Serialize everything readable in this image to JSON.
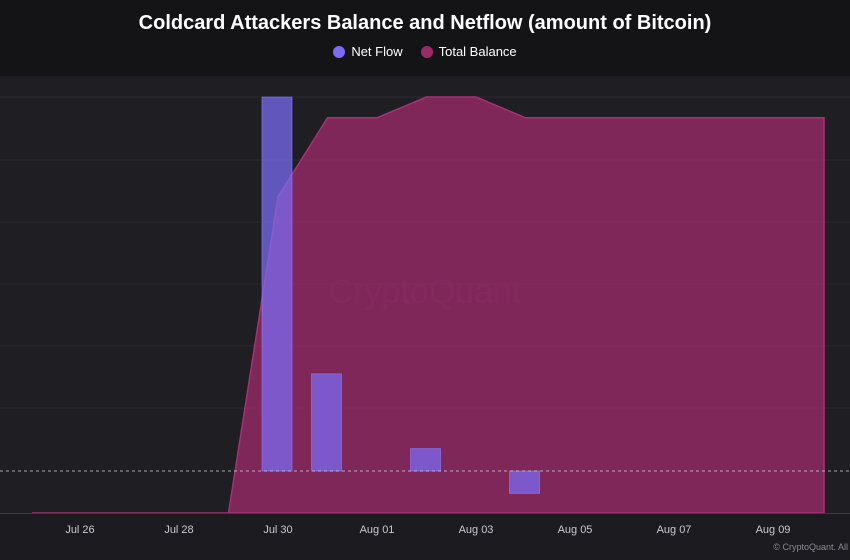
{
  "chart_data": {
    "type": "bar",
    "title": "Coldcard Attackers Balance and Netflow (amount of Bitcoin)",
    "x_tick_labels": [
      "Jul 26",
      "Jul 28",
      "Jul 30",
      "Aug 01",
      "Aug 03",
      "Aug 05",
      "Aug 07",
      "Aug 09"
    ],
    "x_ticks": [
      "2024-07-26",
      "2024-07-28",
      "2024-07-30",
      "2024-08-01",
      "2024-08-03",
      "2024-08-05",
      "2024-08-07",
      "2024-08-09"
    ],
    "x_range": [
      "2024-07-25",
      "2024-08-10"
    ],
    "grid": true,
    "legend_position": "top-center",
    "series": [
      {
        "name": "Net Flow",
        "type": "bar",
        "color": "#7b6cf6",
        "x": [
          "2024-07-30",
          "2024-07-31",
          "2024-08-02",
          "2024-08-04"
        ],
        "values": [
          1.0,
          0.26,
          0.06,
          -0.06
        ]
      },
      {
        "name": "Total Balance",
        "type": "area",
        "color": "#9c2a6a",
        "x": [
          "2024-07-25",
          "2024-07-29",
          "2024-07-30",
          "2024-07-31",
          "2024-08-01",
          "2024-08-02",
          "2024-08-03",
          "2024-08-04",
          "2024-08-10"
        ],
        "values": [
          0,
          0,
          0.76,
          0.95,
          0.95,
          1.0,
          1.0,
          0.95,
          0.95
        ]
      }
    ],
    "zero_line": "dashed"
  },
  "watermark": "CryptoQuant",
  "footer": "© CryptoQuant. All"
}
